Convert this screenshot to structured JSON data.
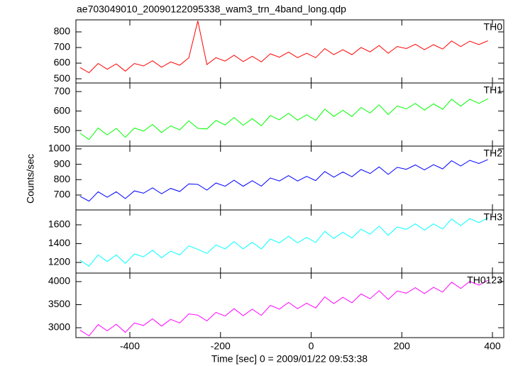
{
  "chart_data": [
    {
      "type": "line",
      "title": "ae703049010_20090122095338_wam3_trn_4band_long.qdp",
      "ylabel": "Counts/sec",
      "x": [
        -510,
        -490,
        -470,
        -450,
        -430,
        -410,
        -390,
        -370,
        -350,
        -330,
        -310,
        -290,
        -270,
        -250,
        -230,
        -210,
        -190,
        -170,
        -150,
        -130,
        -110,
        -90,
        -70,
        -50,
        -30,
        -10,
        10,
        30,
        50,
        70,
        90,
        110,
        130,
        150,
        170,
        190,
        210,
        230,
        250,
        270,
        290,
        310,
        330,
        350,
        370,
        390
      ],
      "series": [
        {
          "name": "TH0",
          "color": "#ff0000",
          "values": [
            572,
            539,
            598,
            561,
            595,
            549,
            598,
            582,
            615,
            574,
            608,
            587,
            634,
            870,
            591,
            635,
            613,
            651,
            610,
            644,
            608,
            660,
            638,
            671,
            635,
            663,
            635,
            693,
            654,
            686,
            654,
            700,
            672,
            713,
            663,
            707,
            693,
            721,
            686,
            718,
            690,
            742,
            706,
            741,
            719,
            743
          ]
        }
      ],
      "xlim": [
        -519,
        425
      ],
      "xticks": [
        -400,
        -200,
        0,
        200,
        400
      ],
      "ylim": [
        473,
        877
      ],
      "yticks": [
        500,
        600,
        700,
        800
      ]
    },
    {
      "type": "line",
      "x": [
        -510,
        -490,
        -470,
        -450,
        -430,
        -410,
        -390,
        -370,
        -350,
        -330,
        -310,
        -290,
        -270,
        -250,
        -230,
        -210,
        -190,
        -170,
        -150,
        -130,
        -110,
        -90,
        -70,
        -50,
        -30,
        -10,
        10,
        30,
        50,
        70,
        90,
        110,
        130,
        150,
        170,
        190,
        210,
        230,
        250,
        270,
        290,
        310,
        330,
        350,
        370,
        390
      ],
      "series": [
        {
          "name": "TH1",
          "color": "#00ff00",
          "values": [
            487,
            454,
            513,
            477,
            511,
            465,
            513,
            497,
            531,
            490,
            524,
            503,
            550,
            511,
            508,
            552,
            529,
            567,
            527,
            561,
            525,
            577,
            555,
            589,
            553,
            581,
            552,
            610,
            572,
            604,
            572,
            618,
            590,
            632,
            582,
            626,
            611,
            639,
            605,
            637,
            609,
            661,
            625,
            661,
            639,
            663
          ]
        }
      ],
      "xlim": [
        -519,
        425
      ],
      "xticks": [
        -400,
        -200,
        0,
        200,
        400
      ],
      "ylim": [
        420,
        744
      ],
      "yticks": [
        500,
        600,
        700
      ]
    },
    {
      "type": "line",
      "x": [
        -510,
        -490,
        -470,
        -450,
        -430,
        -410,
        -390,
        -370,
        -350,
        -330,
        -310,
        -290,
        -270,
        -250,
        -230,
        -210,
        -190,
        -170,
        -150,
        -130,
        -110,
        -90,
        -70,
        -50,
        -30,
        -10,
        10,
        30,
        50,
        70,
        90,
        110,
        130,
        150,
        170,
        190,
        210,
        230,
        250,
        270,
        290,
        310,
        330,
        350,
        370,
        390
      ],
      "series": [
        {
          "name": "TH2",
          "color": "#0000ff",
          "values": [
            692,
            660,
            721,
            686,
            721,
            677,
            727,
            712,
            747,
            708,
            743,
            723,
            772,
            769,
            732,
            778,
            757,
            796,
            757,
            793,
            758,
            811,
            791,
            826,
            791,
            821,
            794,
            853,
            816,
            850,
            819,
            866,
            840,
            883,
            834,
            880,
            867,
            896,
            863,
            897,
            870,
            923,
            889,
            926,
            905,
            931
          ]
        }
      ],
      "xlim": [
        -519,
        425
      ],
      "xticks": [
        -400,
        -200,
        0,
        200,
        400
      ],
      "ylim": [
        603,
        1018
      ],
      "yticks": [
        700,
        800,
        900,
        1000
      ]
    },
    {
      "type": "line",
      "x": [
        -510,
        -490,
        -470,
        -450,
        -430,
        -410,
        -390,
        -370,
        -350,
        -330,
        -310,
        -290,
        -270,
        -250,
        -230,
        -210,
        -190,
        -170,
        -150,
        -130,
        -110,
        -90,
        -70,
        -50,
        -30,
        -10,
        10,
        30,
        50,
        70,
        90,
        110,
        130,
        150,
        170,
        190,
        210,
        230,
        250,
        270,
        290,
        310,
        330,
        350,
        370,
        390
      ],
      "series": [
        {
          "name": "TH3",
          "color": "#00ffff",
          "values": [
            1224,
            1160,
            1280,
            1210,
            1280,
            1190,
            1290,
            1260,
            1330,
            1250,
            1320,
            1280,
            1376,
            1340,
            1296,
            1386,
            1344,
            1422,
            1344,
            1414,
            1344,
            1450,
            1408,
            1478,
            1408,
            1466,
            1412,
            1530,
            1456,
            1522,
            1460,
            1554,
            1500,
            1586,
            1488,
            1578,
            1552,
            1610,
            1544,
            1610,
            1556,
            1662,
            1592,
            1666,
            1624,
            1674
          ]
        }
      ],
      "xlim": [
        -519,
        425
      ],
      "xticks": [
        -400,
        -200,
        0,
        200,
        400
      ],
      "ylim": [
        1087,
        1758
      ],
      "yticks": [
        1200,
        1400,
        1600
      ]
    },
    {
      "type": "line",
      "xlabel": "Time [sec] 0 = 2009/01/22 09:53:38",
      "x": [
        -510,
        -490,
        -470,
        -450,
        -430,
        -410,
        -390,
        -370,
        -350,
        -330,
        -310,
        -290,
        -270,
        -250,
        -230,
        -210,
        -190,
        -170,
        -150,
        -130,
        -110,
        -90,
        -70,
        -50,
        -30,
        -10,
        10,
        30,
        50,
        70,
        90,
        110,
        130,
        150,
        170,
        190,
        210,
        230,
        250,
        270,
        290,
        310,
        330,
        350,
        370,
        390
      ],
      "series": [
        {
          "name": "TH0123",
          "color": "#ff00ff",
          "values": [
            2948,
            2824,
            3068,
            2932,
            3076,
            2900,
            3104,
            3048,
            3192,
            3036,
            3180,
            3104,
            3300,
            3272,
            3148,
            3332,
            3252,
            3412,
            3260,
            3404,
            3268,
            3484,
            3404,
            3548,
            3412,
            3532,
            3428,
            3668,
            3524,
            3660,
            3540,
            3732,
            3628,
            3804,
            3612,
            3796,
            3748,
            3868,
            3740,
            3876,
            3772,
            3988,
            3852,
            4004,
            3924,
            4028
          ]
        }
      ],
      "xlim": [
        -519,
        425
      ],
      "xticks": [
        -400,
        -200,
        0,
        200,
        400
      ],
      "ylim": [
        2785,
        4185
      ],
      "yticks": [
        3000,
        3500,
        4000
      ]
    }
  ]
}
